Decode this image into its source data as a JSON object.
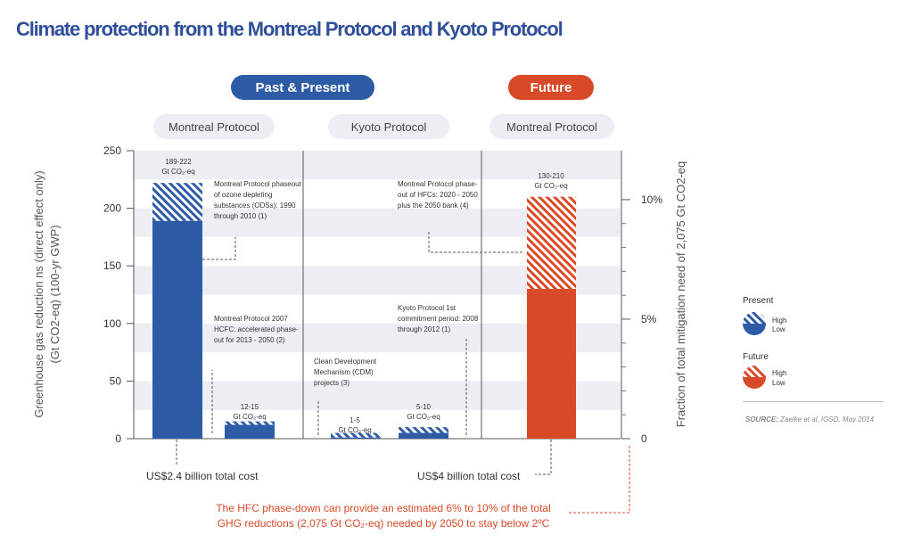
{
  "title": "Climate protection from the Montreal Protocol and Kyoto Protocol",
  "headers": {
    "past_present": "Past & Present",
    "future": "Future",
    "sub": [
      "Montreal Protocol",
      "Kyoto Protocol",
      "Montreal Protocol"
    ]
  },
  "colors": {
    "blue": "#2e5ba6",
    "red": "#d84a27",
    "band": "#eceef4"
  },
  "chart_data": {
    "type": "bar",
    "ylabel_left": "Greenhouse gas reduction ns (direct effect only) (Gt CO2-eq) (100-yr GWP)",
    "ylabel_right": "Fraction of total mitigation need of 2,075 Gt CO2-eq",
    "y_ticks": [
      0,
      50,
      100,
      150,
      200,
      250
    ],
    "ylim": [
      0,
      250
    ],
    "right_ticks": [
      "0",
      "5%",
      "10%"
    ],
    "right_tick_values": [
      0,
      103.75,
      207.5
    ],
    "bars": [
      {
        "group": "Present",
        "low": 189,
        "high": 222,
        "label": "189-222\nGt CO₂-eq"
      },
      {
        "group": "Present",
        "low": 12,
        "high": 15,
        "label": "12-15\nGt CO₂-eq"
      },
      {
        "group": "Present",
        "low": 1,
        "high": 5,
        "label": "1-5\nGt CO₂-eq"
      },
      {
        "group": "Present",
        "low": 5,
        "high": 10,
        "label": "5-10\nGt CO₂-eq"
      },
      {
        "group": "Future",
        "low": 130,
        "high": 210,
        "label": "130-210\nGt CO₂-eq"
      }
    ]
  },
  "annotations": {
    "ods": "Montreal Protocol phaseout of ozone depleting substances (ODSs): 1990 through 2010 (1)",
    "hcfc": "Montreal Protocol 2007 HCFC: accelerated phase-out for 2013 - 2050 (2)",
    "cdm": "Clean Development Mechanism (CDM) projects (3)",
    "kyoto": "Kyoto Protocol 1st commitment period: 2008 through 2012 (1)",
    "hfc": "Montreal Protocol phase-out of HFCs: 2020 - 2050 plus the 2050 bank (4)"
  },
  "costs": {
    "montreal": "US$2.4 billion total cost",
    "kyoto": "US$4 billion total cost"
  },
  "note_line1": "The HFC phase-down can provide an estimated 6% to 10% of the total",
  "note_line2": "GHG reductions (2,075 Gt CO₂-eq) needed by 2050 to stay below 2ºC",
  "legend": {
    "present": "Present",
    "future": "Future",
    "high": "High",
    "low": "Low"
  },
  "source_label": "SOURCE:",
  "source_text": "Zaelke et al, IGSD, May 2014"
}
